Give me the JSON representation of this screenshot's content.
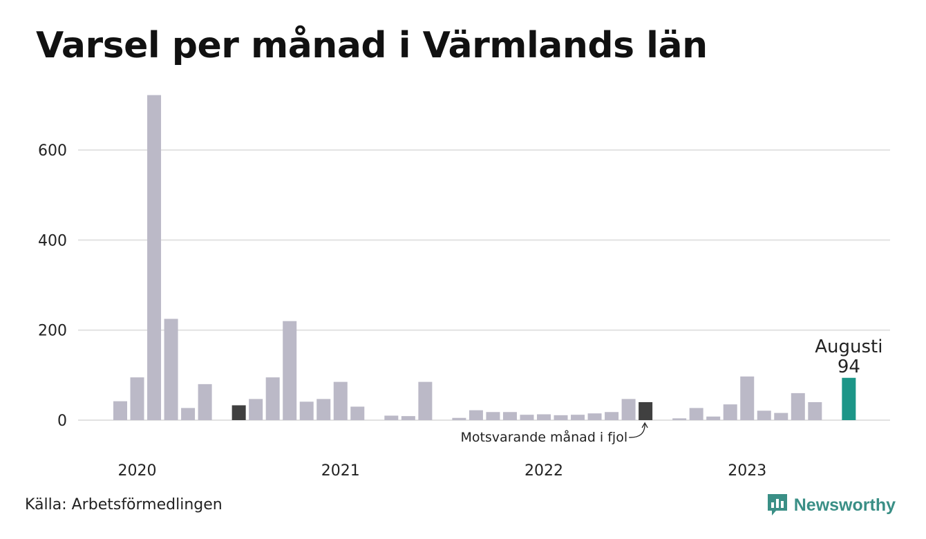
{
  "title": "Varsel per månad i Värmlands län",
  "source": "Källa: Arbetsförmedlingen",
  "brand": "Newsworthy",
  "chart_data": {
    "type": "bar",
    "title": "Varsel per månad i Värmlands län",
    "ylim": [
      0,
      720
    ],
    "yticks": [
      0,
      200,
      400,
      600
    ],
    "grid": true,
    "xtick_labels": [
      {
        "label": "2020",
        "index": 1
      },
      {
        "label": "2021",
        "index": 13
      },
      {
        "label": "2022",
        "index": 25
      },
      {
        "label": "2023",
        "index": 37
      }
    ],
    "values": [
      42,
      95,
      722,
      225,
      27,
      80,
      null,
      33,
      47,
      95,
      220,
      41,
      47,
      85,
      30,
      null,
      10,
      9,
      85,
      null,
      5,
      22,
      18,
      18,
      12,
      13,
      11,
      12,
      15,
      18,
      47,
      40,
      null,
      4,
      27,
      8,
      35,
      97,
      21,
      16,
      60,
      40,
      null,
      94
    ],
    "comparison_indices": [
      7,
      31
    ],
    "highlight_index": 43,
    "colors": {
      "bar": "#bbb9c7",
      "comparison": "#404040",
      "highlight": "#1c9688",
      "grid": "#e2e2e2"
    },
    "annotations": {
      "comparison": "Motsvarande månad i fjol",
      "highlight_month": "Augusti",
      "highlight_value": "94"
    }
  }
}
